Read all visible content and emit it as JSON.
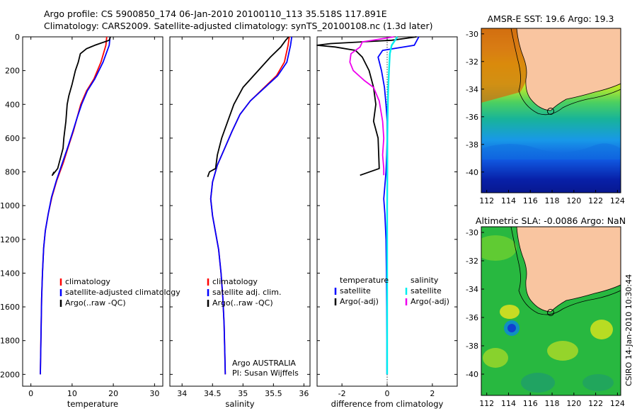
{
  "header": {
    "line1": "Argo profile: CS 5900850_174 06-Jan-2010 20100110_113 35.518S 117.891E",
    "line2": "Climatology: CARS2009. Satellite-adjusted climatology: synTS_20100108.nc (1.3d later)"
  },
  "side_label": "CSIRO 14-Jan-2010 10:30:44",
  "chart_data": [
    {
      "id": "temperature",
      "type": "line",
      "xlabel": "temperature",
      "xlim": [
        -2,
        32
      ],
      "xticks": [
        0,
        10,
        20,
        30
      ],
      "ylim": [
        0,
        2070
      ],
      "yticks": [
        0,
        200,
        400,
        600,
        800,
        1000,
        1200,
        1400,
        1600,
        1800,
        2000
      ],
      "yreversed": true,
      "legend": [
        "climatology",
        "satellite-adjusted climatology",
        "Argo(..raw -QC)"
      ],
      "series": [
        {
          "name": "climatology",
          "color": "#ff0000",
          "x": [
            18.4,
            18.2,
            17.0,
            15.3,
            13.5,
            12.1,
            11.2,
            10.3,
            9.1,
            7.8,
            6.3,
            5.1,
            4.2,
            3.5,
            3.1,
            2.8,
            2.6,
            2.5,
            2.4,
            2.3
          ],
          "y": [
            0,
            50,
            150,
            250,
            320,
            400,
            480,
            560,
            650,
            750,
            850,
            950,
            1050,
            1150,
            1250,
            1400,
            1550,
            1700,
            1850,
            2000
          ]
        },
        {
          "name": "satellite",
          "color": "#0000ff",
          "x": [
            19.2,
            19.0,
            17.5,
            15.5,
            13.7,
            12.3,
            11.2,
            10.2,
            9.0,
            7.6,
            6.2,
            5.0,
            4.2,
            3.5,
            3.1,
            2.8,
            2.6,
            2.5,
            2.4,
            2.3
          ],
          "y": [
            0,
            50,
            150,
            250,
            320,
            400,
            480,
            560,
            650,
            750,
            850,
            950,
            1050,
            1150,
            1250,
            1400,
            1550,
            1700,
            1850,
            2000
          ]
        },
        {
          "name": "Argo",
          "color": "#000000",
          "x": [
            19.3,
            19.0,
            15.5,
            13.5,
            12.0,
            11.5,
            10.8,
            10.0,
            9.2,
            8.8,
            8.5,
            8.0,
            7.8,
            6.5,
            5.2,
            5.6
          ],
          "y": [
            0,
            20,
            50,
            70,
            100,
            150,
            200,
            280,
            350,
            400,
            500,
            600,
            660,
            780,
            820,
            800
          ]
        }
      ]
    },
    {
      "id": "salinity",
      "type": "line",
      "xlabel": "salinity",
      "xlim": [
        33.8,
        36.1
      ],
      "xticks": [
        34,
        34.5,
        35,
        35.5,
        36
      ],
      "ylim": [
        0,
        2070
      ],
      "yreversed": true,
      "legend": [
        "climatology",
        "satellite adj. clim.",
        "Argo(..raw -QC)"
      ],
      "annotation": [
        "Argo AUSTRALIA",
        "PI: Susan Wijffels"
      ],
      "series": [
        {
          "name": "climatology",
          "color": "#ff0000",
          "x": [
            35.76,
            35.74,
            35.68,
            35.55,
            35.35,
            35.12,
            34.95,
            34.82,
            34.7,
            34.58,
            34.5,
            34.47,
            34.5,
            34.55,
            34.6,
            34.64,
            34.67,
            34.69,
            34.7,
            34.71
          ],
          "y": [
            0,
            50,
            150,
            230,
            300,
            380,
            460,
            560,
            660,
            760,
            860,
            960,
            1060,
            1160,
            1260,
            1400,
            1550,
            1700,
            1850,
            2000
          ]
        },
        {
          "name": "satellite",
          "color": "#0000ff",
          "x": [
            35.8,
            35.78,
            35.72,
            35.57,
            35.36,
            35.12,
            34.95,
            34.82,
            34.7,
            34.58,
            34.5,
            34.47,
            34.5,
            34.55,
            34.6,
            34.64,
            34.67,
            34.69,
            34.7,
            34.71
          ],
          "y": [
            0,
            50,
            150,
            230,
            300,
            380,
            460,
            560,
            660,
            760,
            860,
            960,
            1060,
            1160,
            1260,
            1400,
            1550,
            1700,
            1850,
            2000
          ]
        },
        {
          "name": "Argo",
          "color": "#000000",
          "x": [
            35.75,
            35.7,
            35.62,
            35.45,
            35.25,
            35.0,
            34.85,
            34.75,
            34.65,
            34.58,
            34.55,
            34.45,
            34.42
          ],
          "y": [
            0,
            20,
            60,
            120,
            200,
            300,
            400,
            500,
            600,
            700,
            780,
            800,
            830
          ]
        }
      ]
    },
    {
      "id": "difference",
      "type": "line",
      "xlabel": "difference from climatology",
      "xlim": [
        -3.1,
        3.1
      ],
      "xticks": [
        -2,
        0,
        2
      ],
      "ylim": [
        0,
        2070
      ],
      "yreversed": true,
      "legend": [
        "temperature",
        "satellite",
        "Argo(-adj)",
        "salinity",
        "satellite",
        "Argo(-adj)"
      ],
      "series": [
        {
          "name": "temperature satellite",
          "color": "#0000ff",
          "x": [
            1.4,
            1.2,
            -0.2,
            -0.4,
            -0.25,
            -0.12,
            -0.05,
            0.0,
            0.0,
            -0.02,
            -0.05,
            -0.1,
            -0.15,
            -0.1,
            -0.05,
            -0.03,
            -0.02,
            -0.01,
            -0.01
          ],
          "y": [
            0,
            50,
            80,
            120,
            200,
            300,
            400,
            500,
            600,
            700,
            800,
            880,
            960,
            1050,
            1200,
            1400,
            1600,
            1800,
            2000
          ]
        },
        {
          "name": "temperature Argo",
          "color": "#000000",
          "x": [
            1.3,
            0.2,
            -2.5,
            -3.1,
            -2.3,
            -1.4,
            -1.1,
            -0.8,
            -0.6,
            -0.5,
            -0.6,
            -0.4,
            -0.35,
            -1.2
          ],
          "y": [
            0,
            20,
            40,
            50,
            60,
            80,
            120,
            200,
            300,
            400,
            500,
            600,
            780,
            820
          ]
        },
        {
          "name": "salinity satellite",
          "color": "#00eeee",
          "x": [
            0.45,
            0.2,
            0.12,
            0.08,
            0.05,
            0.03,
            0.02,
            0.01,
            0.01,
            0.0,
            0.0,
            0.0,
            0.0,
            0.0
          ],
          "y": [
            0,
            50,
            100,
            200,
            300,
            400,
            500,
            600,
            800,
            1000,
            1200,
            1500,
            1800,
            2000
          ]
        },
        {
          "name": "salinity Argo",
          "color": "#ee00ee",
          "x": [
            0.3,
            -1.1,
            -1.2,
            -1.6,
            -1.65,
            -1.5,
            -1.0,
            -0.6,
            -0.35,
            -0.2,
            -0.15,
            -0.2,
            -0.15,
            -0.15
          ],
          "y": [
            0,
            30,
            60,
            100,
            150,
            200,
            260,
            300,
            380,
            500,
            600,
            700,
            780,
            820
          ]
        }
      ]
    }
  ],
  "maps": [
    {
      "id": "sst",
      "title": "AMSR-E SST: 19.6 Argo: 19.3",
      "xticks": [
        112,
        114,
        116,
        118,
        120,
        122,
        124
      ],
      "yticks": [
        -30,
        -32,
        -34,
        -36,
        -38,
        -40
      ],
      "float_lon": 117.891,
      "float_lat": -35.518
    },
    {
      "id": "sla",
      "title": "Altimetric SLA: -0.0086 Argo: NaN",
      "xticks": [
        112,
        114,
        116,
        118,
        120,
        122,
        124
      ],
      "yticks": [
        -30,
        -32,
        -34,
        -36,
        -38,
        -40
      ],
      "float_lon": 117.891,
      "float_lat": -35.518
    }
  ]
}
